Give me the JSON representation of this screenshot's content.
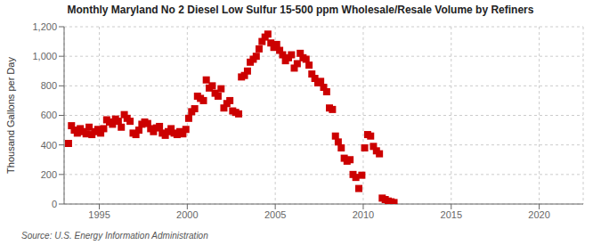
{
  "chart_data": {
    "type": "scatter",
    "title": "Monthly Maryland No 2 Diesel Low Sulfur 15-500 ppm Wholesale/Resale Volume by Refiners",
    "ylabel": "Thousand Gallons per Day",
    "annotations": [
      "Source: U.S. Energy Information Administration"
    ],
    "color": "#cc0000",
    "marker": "square",
    "grid": true,
    "xlim": [
      1993.0,
      2022.5
    ],
    "xticks": [
      1995,
      2000,
      2005,
      2010,
      2015,
      2020
    ],
    "ylim": [
      0,
      1200
    ],
    "yticks": [
      0,
      200,
      400,
      600,
      800,
      {
        "value": 1000,
        "label": "1,000"
      },
      {
        "value": 1200,
        "label": "1,200"
      }
    ],
    "x": [
      1993.25,
      1993.42,
      1993.58,
      1993.75,
      1993.92,
      1994.08,
      1994.25,
      1994.42,
      1994.58,
      1994.75,
      1994.92,
      1995.08,
      1995.25,
      1995.42,
      1995.58,
      1995.75,
      1995.92,
      1996.08,
      1996.25,
      1996.42,
      1996.58,
      1996.75,
      1996.92,
      1997.08,
      1997.25,
      1997.42,
      1997.58,
      1997.75,
      1997.92,
      1998.08,
      1998.25,
      1998.42,
      1998.58,
      1998.75,
      1998.92,
      1999.08,
      1999.25,
      1999.42,
      1999.58,
      1999.75,
      1999.92,
      2000.08,
      2000.25,
      2000.42,
      2000.58,
      2000.75,
      2000.92,
      2001.08,
      2001.25,
      2001.42,
      2001.58,
      2001.75,
      2001.92,
      2002.08,
      2002.25,
      2002.42,
      2002.58,
      2002.75,
      2002.92,
      2003.08,
      2003.25,
      2003.42,
      2003.58,
      2003.75,
      2003.92,
      2004.08,
      2004.25,
      2004.42,
      2004.58,
      2004.75,
      2004.92,
      2005.08,
      2005.25,
      2005.42,
      2005.58,
      2005.75,
      2005.92,
      2006.08,
      2006.25,
      2006.42,
      2006.58,
      2006.75,
      2006.92,
      2007.08,
      2007.25,
      2007.42,
      2007.58,
      2007.75,
      2007.92,
      2008.08,
      2008.25,
      2008.42,
      2008.58,
      2008.75,
      2008.92,
      2009.08,
      2009.25,
      2009.42,
      2009.58,
      2009.75,
      2009.92,
      2010.08,
      2010.25,
      2010.42,
      2010.58,
      2010.75,
      2010.92,
      2011.08,
      2011.25,
      2011.42,
      2011.58,
      2011.75
    ],
    "values": [
      410,
      530,
      500,
      480,
      510,
      490,
      475,
      520,
      470,
      490,
      505,
      480,
      510,
      570,
      555,
      540,
      575,
      560,
      520,
      605,
      580,
      560,
      480,
      470,
      500,
      540,
      555,
      545,
      510,
      490,
      515,
      525,
      480,
      465,
      490,
      510,
      480,
      470,
      490,
      475,
      505,
      580,
      625,
      645,
      730,
      715,
      700,
      840,
      785,
      800,
      750,
      730,
      780,
      650,
      680,
      700,
      630,
      620,
      610,
      860,
      870,
      900,
      960,
      980,
      1000,
      1050,
      1100,
      1130,
      1150,
      1090,
      1060,
      1080,
      1040,
      1010,
      970,
      990,
      1010,
      920,
      950,
      1020,
      990,
      980,
      940,
      880,
      850,
      820,
      830,
      790,
      760,
      650,
      640,
      460,
      420,
      380,
      310,
      290,
      300,
      200,
      180,
      105,
      195,
      380,
      470,
      460,
      390,
      360,
      340,
      40,
      30,
      20,
      15,
      10
    ]
  }
}
